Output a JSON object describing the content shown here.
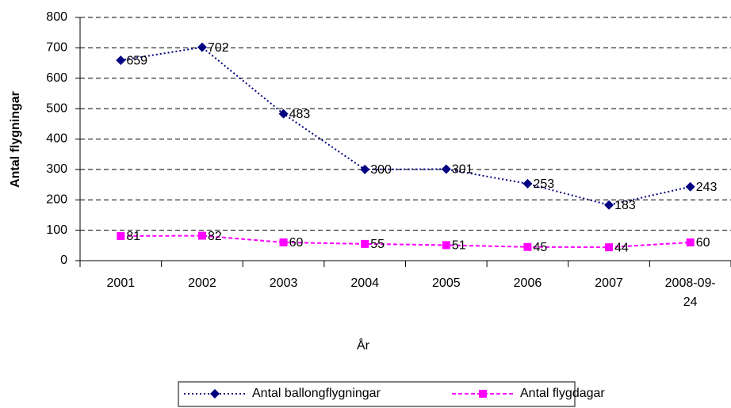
{
  "chart_data": {
    "type": "line",
    "categories": [
      "2001",
      "2002",
      "2003",
      "2004",
      "2005",
      "2006",
      "2007",
      "2008-09-24"
    ],
    "series": [
      {
        "name": "Antal ballongflygningar",
        "color": "#000080",
        "marker": "diamond",
        "values": [
          659,
          702,
          483,
          300,
          301,
          253,
          183,
          243
        ]
      },
      {
        "name": "Antal flygdagar",
        "color": "#ff00ff",
        "marker": "square",
        "values": [
          81,
          82,
          60,
          55,
          51,
          45,
          44,
          60
        ]
      }
    ],
    "ylim": [
      0,
      800
    ],
    "yticks": [
      0,
      100,
      200,
      300,
      400,
      500,
      600,
      700,
      800
    ],
    "xlabel": "År",
    "ylabel": "Antal flygningar",
    "grid": true,
    "legend": "bottom"
  }
}
